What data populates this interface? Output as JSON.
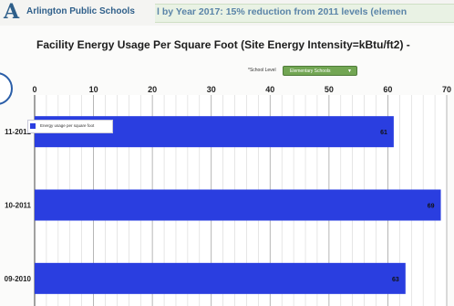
{
  "header": {
    "logo_mark": "A",
    "logo_text": "Arlington Public Schools",
    "goal_text": "l by Year 2017:  15% reduction from 2011 levels (elemen"
  },
  "selector": {
    "label": "*School Level",
    "value": "Elementary Schools"
  },
  "chart_data": {
    "type": "bar",
    "orientation": "horizontal",
    "title": "Facility Energy Usage Per Square Foot (Site Energy Intensity=kBtu/ft2) -",
    "categories": [
      "11-2012",
      "10-2011",
      "09-2010"
    ],
    "series": [
      {
        "name": "Energy usage per square foot",
        "values": [
          61,
          69,
          63
        ],
        "color": "#2a3ee0"
      }
    ],
    "xlim": [
      0,
      70
    ],
    "xticks": [
      0,
      10,
      20,
      30,
      40,
      50,
      60,
      70
    ],
    "grid": true,
    "legend": "top-left"
  }
}
